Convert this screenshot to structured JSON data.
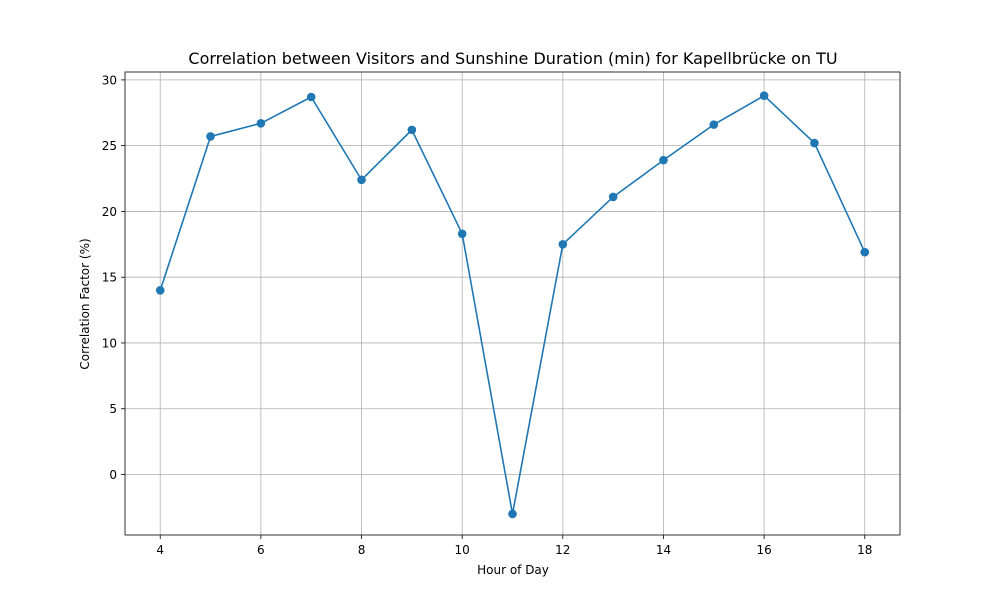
{
  "chart_data": {
    "type": "line",
    "title": "Correlation between Visitors and Sunshine Duration (min) for Kapellbrücke on TU",
    "xlabel": "Hour of Day",
    "ylabel": "Correlation Factor (%)",
    "x": [
      4,
      5,
      6,
      7,
      8,
      9,
      10,
      11,
      12,
      13,
      14,
      15,
      16,
      17,
      18
    ],
    "series": [
      {
        "values": [
          14.0,
          25.7,
          26.7,
          28.7,
          22.4,
          26.2,
          18.3,
          -3.0,
          17.5,
          21.1,
          23.9,
          26.6,
          28.8,
          25.2,
          16.9
        ]
      }
    ],
    "xlim": [
      3.3,
      18.7
    ],
    "ylim": [
      -4.6,
      30.6
    ],
    "xticks": [
      4,
      6,
      8,
      10,
      12,
      14,
      16,
      18
    ],
    "yticks": [
      0,
      5,
      10,
      15,
      20,
      25,
      30
    ],
    "grid": true,
    "line_color": "#1f77b4",
    "marker": "circle"
  }
}
